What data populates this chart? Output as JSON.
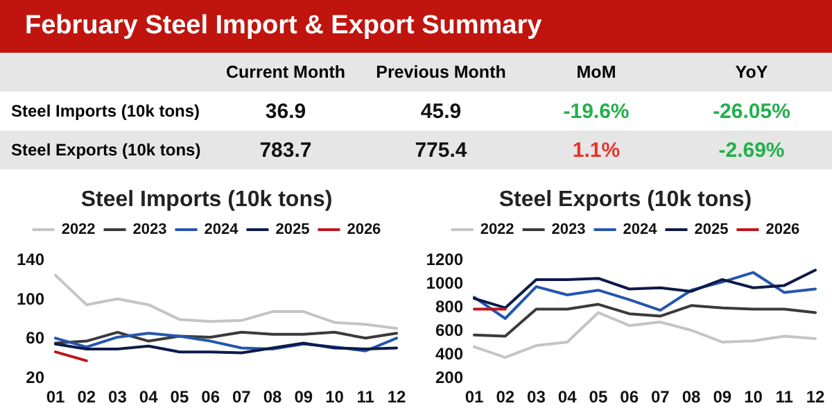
{
  "chart_data": [
    {
      "type": "other",
      "title": "February Steel Import & Export Summary",
      "categories": [
        "Current Month",
        "Previous Month",
        "MoM",
        "YoY"
      ],
      "y_categories": [
        "Steel Imports (10k tons)",
        "Steel Exports (10k tons)"
      ],
      "cell_labels": [
        [
          "36.9",
          "45.9",
          "-19.6%",
          "-26.05%"
        ],
        [
          "783.7",
          "775.4",
          "1.1%",
          "-2.69%"
        ]
      ],
      "colors": [
        [
          "#111111",
          "#111111",
          "#21b04b",
          "#21b04b"
        ],
        [
          "#111111",
          "#111111",
          "#e8322b",
          "#21b04b"
        ]
      ]
    },
    {
      "type": "line",
      "title": "Steel Imports (10k tons)",
      "categories": [
        "01",
        "02",
        "03",
        "04",
        "05",
        "06",
        "07",
        "08",
        "09",
        "10",
        "11",
        "12"
      ],
      "ylim": [
        20,
        140
      ],
      "yticks": [
        20,
        60,
        100,
        140
      ],
      "grid": false,
      "legend": "top",
      "marker": "none",
      "line_style": "solid",
      "series": [
        {
          "name": "2022",
          "color": "#c4c4c4",
          "values": [
            124,
            94,
            100,
            94,
            79,
            77,
            78,
            87,
            87,
            76,
            74,
            70
          ]
        },
        {
          "name": "2023",
          "color": "#3a3a3a",
          "values": [
            55,
            57,
            66,
            57,
            62,
            61,
            66,
            64,
            64,
            66,
            60,
            65
          ]
        },
        {
          "name": "2024",
          "color": "#2456b0",
          "values": [
            60,
            51,
            61,
            65,
            62,
            57,
            50,
            49,
            54,
            51,
            47,
            60
          ]
        },
        {
          "name": "2025",
          "color": "#0d1a4a",
          "values": [
            54,
            49,
            49,
            52,
            46,
            46,
            45,
            50,
            55,
            50,
            49,
            50
          ]
        },
        {
          "name": "2026",
          "color": "#c0141b",
          "values": [
            46,
            37,
            null,
            null,
            null,
            null,
            null,
            null,
            null,
            null,
            null,
            null
          ]
        }
      ]
    },
    {
      "type": "line",
      "title": "Steel Exports (10k tons)",
      "categories": [
        "01",
        "02",
        "03",
        "04",
        "05",
        "06",
        "07",
        "08",
        "09",
        "10",
        "11",
        "12"
      ],
      "ylim": [
        200,
        1200
      ],
      "yticks": [
        200,
        400,
        600,
        800,
        1000,
        1200
      ],
      "grid": false,
      "legend": "top",
      "marker": "none",
      "line_style": "solid",
      "series": [
        {
          "name": "2022",
          "color": "#c4c4c4",
          "values": [
            460,
            370,
            470,
            500,
            750,
            640,
            670,
            600,
            500,
            510,
            550,
            530
          ]
        },
        {
          "name": "2023",
          "color": "#3a3a3a",
          "values": [
            560,
            550,
            780,
            780,
            820,
            740,
            720,
            810,
            790,
            780,
            780,
            750
          ]
        },
        {
          "name": "2024",
          "color": "#2456b0",
          "values": [
            880,
            700,
            970,
            900,
            940,
            860,
            770,
            940,
            1010,
            1090,
            920,
            950
          ]
        },
        {
          "name": "2025",
          "color": "#0d1a4a",
          "values": [
            870,
            790,
            1030,
            1030,
            1040,
            950,
            960,
            930,
            1030,
            960,
            980,
            1110
          ]
        },
        {
          "name": "2026",
          "color": "#c0141b",
          "values": [
            780,
            780,
            null,
            null,
            null,
            null,
            null,
            null,
            null,
            null,
            null,
            null
          ]
        }
      ]
    }
  ]
}
